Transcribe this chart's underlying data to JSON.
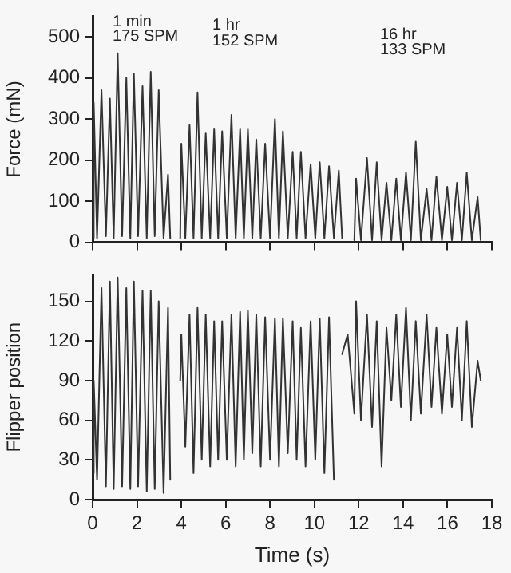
{
  "chart_data": [
    {
      "type": "line",
      "ylabel": "Force (mN)",
      "xlim": [
        0,
        18
      ],
      "xticks": [
        0,
        2,
        4,
        6,
        8,
        10,
        12,
        14,
        16,
        18
      ],
      "ylim": [
        0,
        550
      ],
      "yticks": [
        0,
        100,
        200,
        300,
        400,
        500
      ],
      "tick_labels": "y",
      "grid": false,
      "marker": "none",
      "annotations": [
        "1 min",
        "175 SPM",
        "1 hr",
        "152 SPM",
        "16 hr",
        "133 SPM"
      ],
      "x": [
        0,
        0.05,
        0.2,
        0.4,
        0.6,
        0.78,
        0.95,
        1.13,
        1.33,
        1.52,
        1.7,
        1.86,
        2.05,
        2.25,
        2.44,
        2.62,
        2.8,
        2.98,
        3.2,
        3.4,
        3.5,
        3.75,
        3.95,
        4.0,
        4.18,
        4.37,
        4.55,
        4.73,
        4.92,
        5.1,
        5.3,
        5.48,
        5.66,
        5.84,
        6.05,
        6.26,
        6.45,
        6.65,
        6.82,
        7.0,
        7.2,
        7.38,
        7.58,
        7.78,
        8.0,
        8.22,
        8.4,
        8.58,
        8.8,
        9.02,
        9.2,
        9.39,
        9.6,
        9.83,
        10.04,
        10.24,
        10.45,
        10.66,
        10.88,
        11.1,
        11.25,
        11.5,
        11.8,
        11.88,
        12.1,
        12.37,
        12.6,
        12.81,
        13.03,
        13.25,
        13.47,
        13.69,
        13.9,
        14.13,
        14.35,
        14.57,
        14.8,
        15.06,
        15.28,
        15.5,
        15.75,
        15.99,
        16.2,
        16.43,
        16.65,
        16.87,
        17.1,
        17.36,
        17.5
      ],
      "series": [
        {
          "color": "#333333",
          "values": [
            10,
            340,
            10,
            370,
            15,
            350,
            10,
            460,
            15,
            400,
            10,
            410,
            15,
            380,
            10,
            415,
            15,
            370,
            10,
            165,
            10,
            null,
            10,
            240,
            10,
            285,
            10,
            365,
            10,
            265,
            10,
            275,
            10,
            270,
            10,
            310,
            10,
            275,
            10,
            275,
            10,
            250,
            10,
            240,
            10,
            300,
            10,
            270,
            10,
            220,
            10,
            220,
            10,
            190,
            10,
            195,
            10,
            185,
            10,
            175,
            10,
            null,
            5,
            155,
            5,
            205,
            5,
            195,
            5,
            145,
            5,
            155,
            5,
            170,
            5,
            245,
            5,
            130,
            5,
            160,
            5,
            135,
            5,
            145,
            5,
            170,
            5,
            110,
            5
          ]
        }
      ]
    },
    {
      "type": "line",
      "xlabel": "Time (s)",
      "ylabel": "Flipper position",
      "xlim": [
        0,
        18
      ],
      "xticks": [
        0,
        2,
        4,
        6,
        8,
        10,
        12,
        14,
        16,
        18
      ],
      "ylim": [
        0,
        170
      ],
      "yticks": [
        0,
        30,
        60,
        90,
        120,
        150
      ],
      "grid": false,
      "marker": "none",
      "x": [
        0,
        0.05,
        0.2,
        0.4,
        0.6,
        0.78,
        0.95,
        1.13,
        1.33,
        1.52,
        1.7,
        1.86,
        2.05,
        2.25,
        2.44,
        2.62,
        2.8,
        2.98,
        3.2,
        3.4,
        3.5,
        3.75,
        3.95,
        4.0,
        4.18,
        4.37,
        4.55,
        4.73,
        4.92,
        5.1,
        5.3,
        5.48,
        5.66,
        5.84,
        6.05,
        6.26,
        6.45,
        6.65,
        6.82,
        7.0,
        7.2,
        7.38,
        7.58,
        7.78,
        8.0,
        8.22,
        8.4,
        8.58,
        8.8,
        9.02,
        9.2,
        9.39,
        9.6,
        9.83,
        10.04,
        10.24,
        10.45,
        10.66,
        10.88,
        11.1,
        11.25,
        11.5,
        11.8,
        11.88,
        12.1,
        12.37,
        12.6,
        12.81,
        13.03,
        13.25,
        13.47,
        13.69,
        13.9,
        14.13,
        14.35,
        14.57,
        14.8,
        15.06,
        15.28,
        15.5,
        15.75,
        15.99,
        16.2,
        16.43,
        16.65,
        16.87,
        17.1,
        17.36,
        17.5
      ],
      "series": [
        {
          "color": "#333333",
          "values": [
            20,
            90,
            15,
            160,
            10,
            165,
            8,
            168,
            10,
            160,
            8,
            165,
            10,
            158,
            6,
            158,
            8,
            150,
            5,
            145,
            15,
            null,
            90,
            125,
            40,
            140,
            20,
            145,
            30,
            140,
            25,
            135,
            30,
            135,
            30,
            140,
            25,
            142,
            30,
            143,
            35,
            140,
            25,
            138,
            30,
            137,
            25,
            137,
            35,
            135,
            30,
            130,
            25,
            135,
            30,
            137,
            20,
            138,
            15,
            null,
            110,
            125,
            65,
            150,
            60,
            140,
            55,
            135,
            25,
            130,
            75,
            140,
            70,
            145,
            60,
            135,
            65,
            140,
            70,
            130,
            65,
            125,
            70,
            130,
            60,
            135,
            55,
            105,
            90
          ]
        }
      ]
    }
  ]
}
